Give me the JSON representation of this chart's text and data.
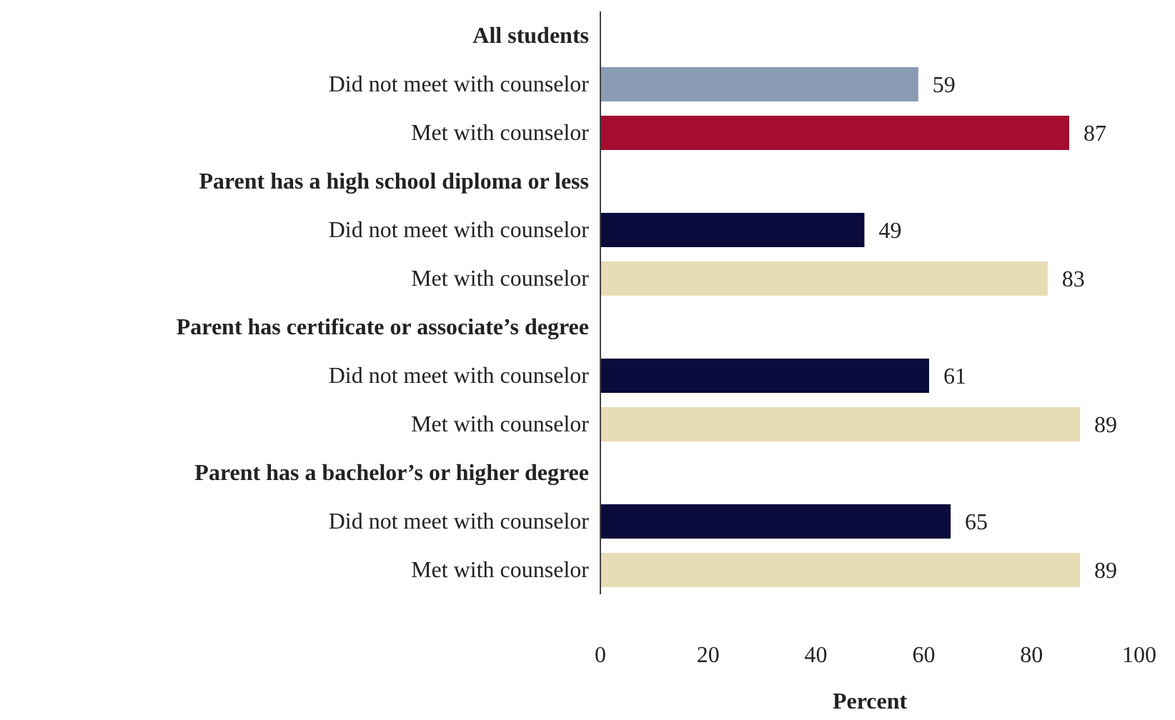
{
  "chart_data": {
    "type": "bar",
    "orientation": "horizontal",
    "xlabel": "Percent",
    "categories": [
      "All students",
      "Did not meet with counselor",
      "Met with counselor",
      "Parent has a high school diploma or less",
      "Did not meet with counselor",
      "Met with counselor",
      "Parent has certificate or associate’s degree",
      "Did not meet with counselor",
      "Met with counselor",
      "Parent has a bachelor’s or higher degree",
      "Did not meet with counselor",
      "Met with counselor"
    ],
    "values": [
      null,
      59,
      87,
      null,
      49,
      83,
      null,
      61,
      89,
      null,
      65,
      89
    ],
    "colors": [
      null,
      "#8a9bb4",
      "#a50d30",
      null,
      "#0a0a3c",
      "#e8dcb5",
      null,
      "#0a0a3c",
      "#e8dcb5",
      null,
      "#0a0a3c",
      "#e8dcb5"
    ],
    "xlim": [
      0,
      100
    ],
    "xticks": [
      0,
      20,
      40,
      60,
      80,
      100
    ],
    "data_labels": true,
    "grid": false,
    "legend": false
  }
}
